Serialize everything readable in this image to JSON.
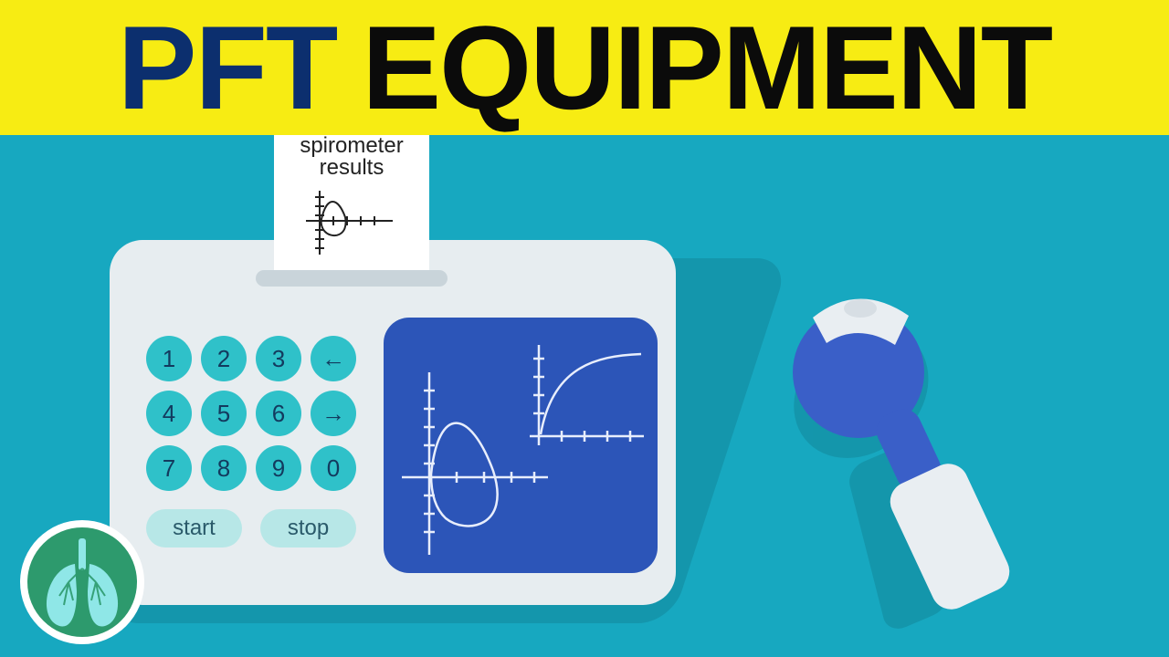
{
  "colors": {
    "banner_bg": "#f7ec13",
    "title_word1_color": "#0c2f6e",
    "title_word2_color": "#0b0b0b",
    "stage_bg": "#17a8c0",
    "device_bg": "#e7edf0",
    "slot_bg": "#c9d4da",
    "key_bg": "#2fc1c9",
    "key_text": "#133a5e",
    "pill_bg": "#b7e7e7",
    "pill_text": "#2a5a6a",
    "screen_bg": "#2c55b8",
    "screen_line": "#e8eefc",
    "paper_text": "#222222",
    "mouthpiece_blue": "#3a5fc8",
    "mouthpiece_white": "#e9eef2",
    "logo_outer": "#ffffff",
    "logo_inner": "#2d9a6d",
    "logo_lung": "#8fe7e7"
  },
  "title": {
    "word1": "PFT",
    "word2": "EQUIPMENT"
  },
  "paper": {
    "line1": "spirometer",
    "line2": "results"
  },
  "keypad": {
    "keys": [
      "1",
      "2",
      "3",
      "←",
      "4",
      "5",
      "6",
      "→",
      "7",
      "8",
      "9",
      "0"
    ]
  },
  "actions": {
    "start": "start",
    "stop": "stop"
  },
  "fontsizes": {
    "banner": 130,
    "paper": 24,
    "key": 26,
    "pill": 24
  }
}
